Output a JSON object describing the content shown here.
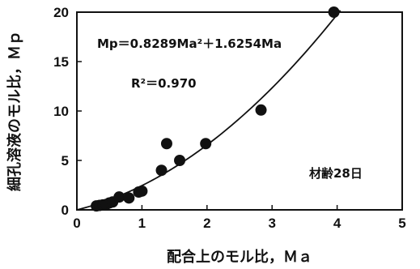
{
  "chart_data": {
    "type": "scatter",
    "title": "",
    "xlabel": "配合上のモル比，Ｍａ",
    "ylabel": "細孔溶液のモル比，Ｍｐ",
    "xlim": [
      0,
      5
    ],
    "ylim": [
      0,
      20
    ],
    "xticks": [
      0,
      1,
      2,
      3,
      4,
      5
    ],
    "yticks": [
      0,
      5,
      10,
      15,
      20
    ],
    "grid": false,
    "series": [
      {
        "points": [
          [
            0.3,
            0.4
          ],
          [
            0.35,
            0.45
          ],
          [
            0.4,
            0.5
          ],
          [
            0.45,
            0.55
          ],
          [
            0.5,
            0.7
          ],
          [
            0.55,
            0.8
          ],
          [
            0.65,
            1.3
          ],
          [
            0.8,
            1.2
          ],
          [
            0.95,
            1.8
          ],
          [
            1.0,
            1.9
          ],
          [
            1.3,
            4.0
          ],
          [
            1.38,
            6.7
          ],
          [
            1.58,
            5.0
          ],
          [
            1.98,
            6.7
          ],
          [
            2.83,
            10.1
          ],
          [
            3.95,
            20.0
          ]
        ]
      }
    ],
    "fit": {
      "a": 0.8289,
      "b": 1.6254,
      "x_range": [
        0,
        4.05
      ]
    },
    "annotations": {
      "equation": "Mp＝0.8289Ma²＋1.6254Ma",
      "r_squared": "R²＝0.970",
      "age": "材齢28日"
    },
    "colors": {
      "marker": "#111111",
      "line": "#111111"
    }
  }
}
